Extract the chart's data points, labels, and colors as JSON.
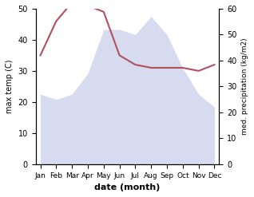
{
  "months": [
    "Jan",
    "Feb",
    "Mar",
    "Apr",
    "May",
    "Jun",
    "Jul",
    "Aug",
    "Sep",
    "Oct",
    "Nov",
    "Dec"
  ],
  "temperature": [
    35,
    46,
    52,
    51,
    49,
    35,
    32,
    31,
    31,
    31,
    30,
    32
  ],
  "precipitation": [
    27,
    25,
    27,
    35,
    52,
    52,
    50,
    57,
    50,
    37,
    27,
    22
  ],
  "temp_color": "#b05060",
  "precip_fill_color": "#c0c8e8",
  "ylabel_left": "max temp (C)",
  "ylabel_right": "med. precipitation (kg/m2)",
  "xlabel": "date (month)",
  "ylim_left": [
    0,
    50
  ],
  "ylim_right": [
    0,
    60
  ],
  "yticks_left": [
    0,
    10,
    20,
    30,
    40,
    50
  ],
  "yticks_right": [
    0,
    10,
    20,
    30,
    40,
    50,
    60
  ],
  "background_color": "#ffffff"
}
